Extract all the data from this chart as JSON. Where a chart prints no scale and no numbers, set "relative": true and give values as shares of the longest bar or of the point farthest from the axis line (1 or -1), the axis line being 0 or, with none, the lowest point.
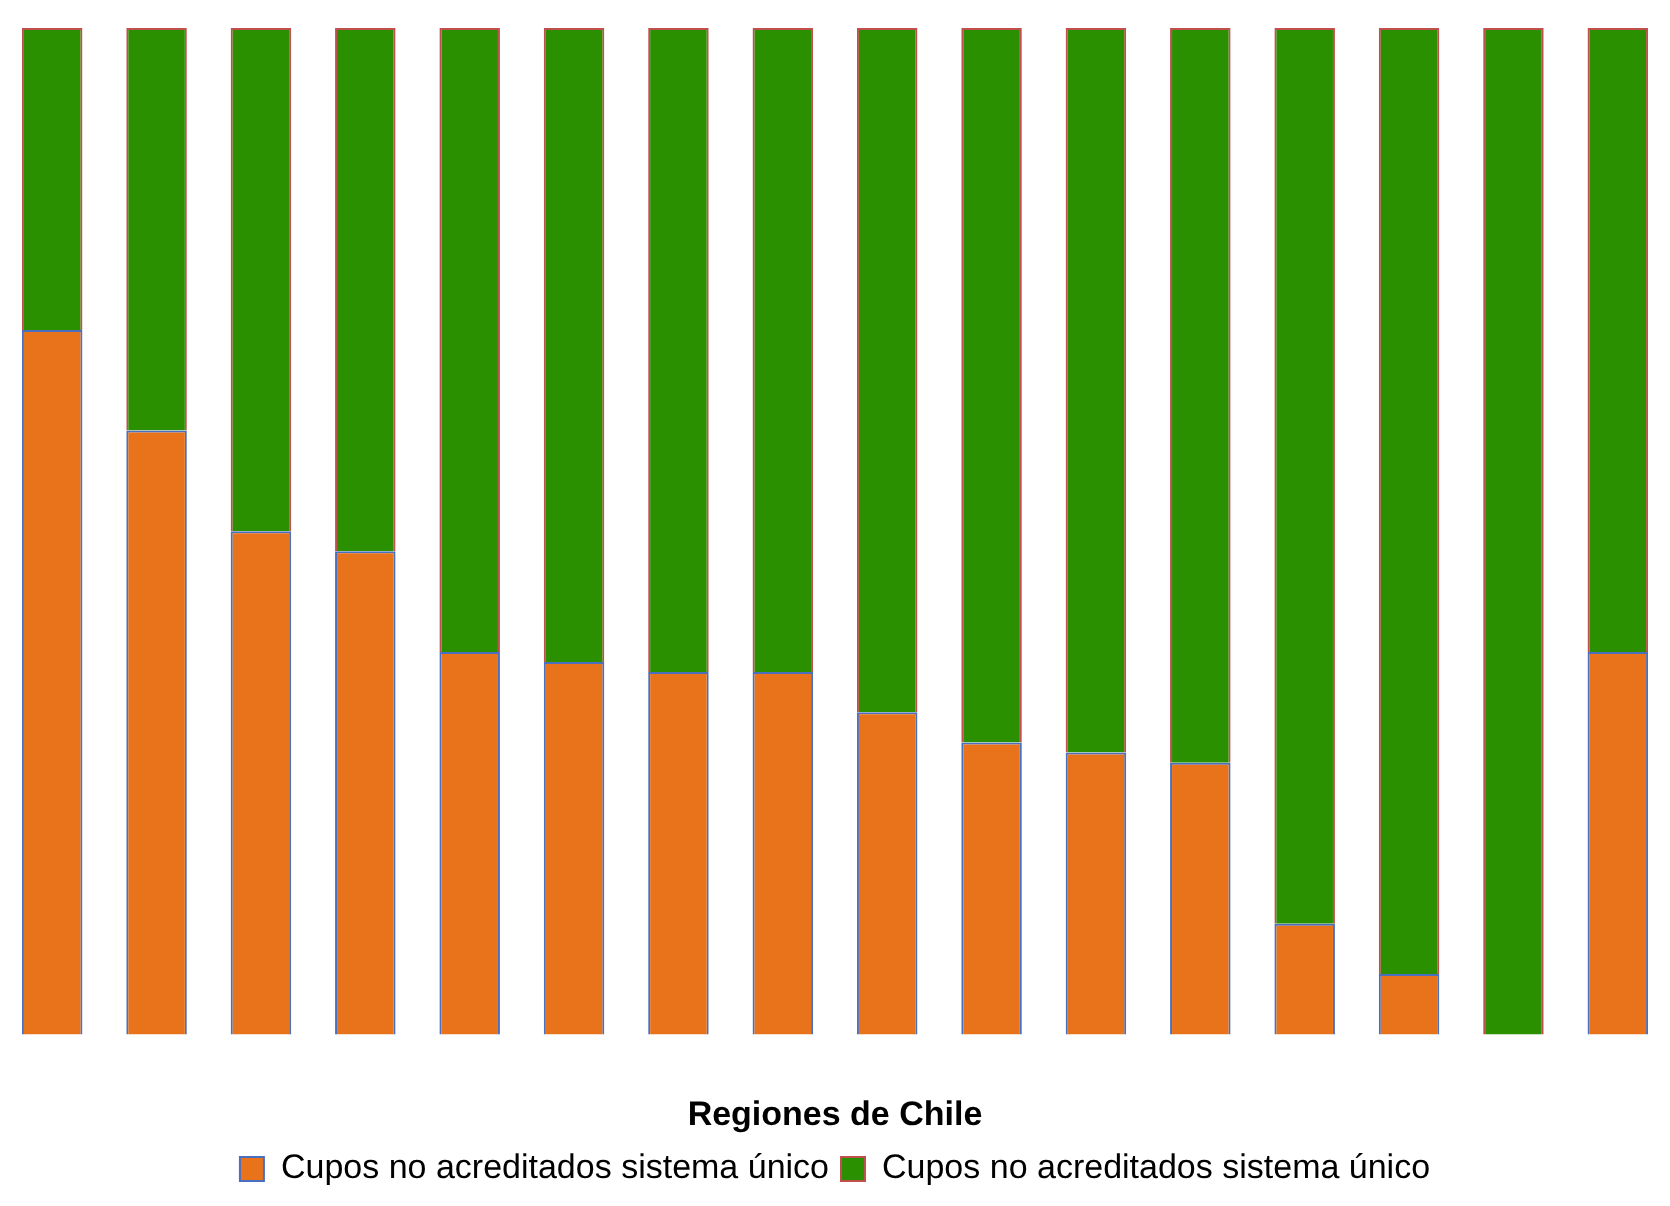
{
  "chart_data": {
    "type": "bar",
    "xlabel": "Regiones de Chile",
    "relative": true,
    "stacked": true,
    "grid": false,
    "legend": "bottom",
    "categories": [
      null,
      null,
      null,
      null,
      null,
      null,
      null,
      null,
      null,
      null,
      null,
      null,
      null,
      null,
      null,
      null
    ],
    "series": [
      {
        "name": "Cupos no acreditados sistema único",
        "color": "#e8731a",
        "values": [
          0.7,
          0.6,
          0.5,
          0.48,
          0.38,
          0.37,
          0.36,
          0.36,
          0.32,
          0.29,
          0.28,
          0.27,
          0.11,
          0.06,
          0,
          0.38
        ]
      },
      {
        "name": "Cupos no acreditados sistema único",
        "color": "#2a9000",
        "values": [
          0.3,
          0.4,
          0.5,
          0.52,
          0.62,
          0.63,
          0.64,
          0.64,
          0.68,
          0.71,
          0.72,
          0.73,
          0.89,
          0.94,
          1,
          0.62
        ]
      }
    ]
  }
}
